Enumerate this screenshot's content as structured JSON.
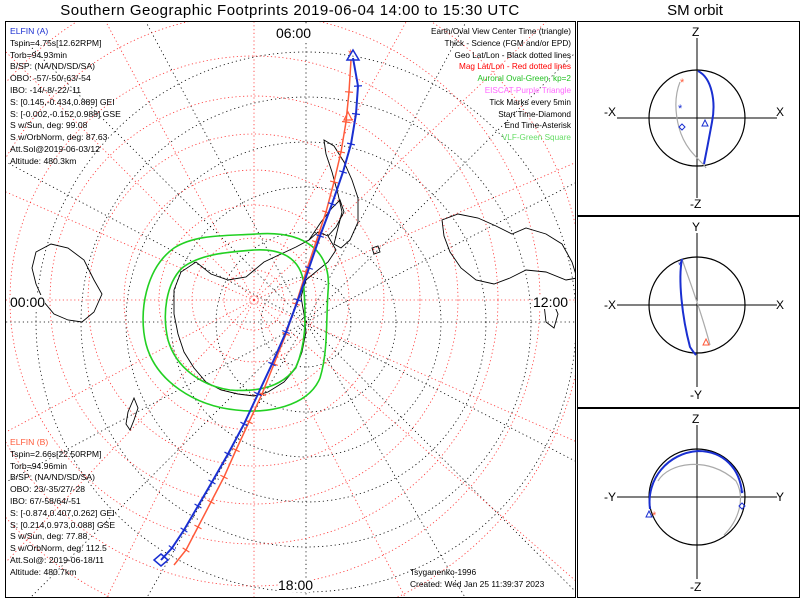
{
  "title": "Southern Geographic Footprints 2019-06-04 14:00 to 15:30 UTC",
  "sm_title": "SM orbit",
  "colors": {
    "elfin_a": "#1a2fd1",
    "elfin_b": "#ff5a3a",
    "auroral_oval": "#22d022",
    "mag_grid": "#ff3030",
    "geo_grid": "#000000",
    "eiscat": "#ff66ff",
    "vlf": "#66dd66"
  },
  "time_labels": {
    "top": "06:00",
    "left": "00:00",
    "right": "12:00",
    "bottom": "18:00"
  },
  "elfin_a": {
    "name": "ELFIN (A)",
    "lines": [
      "Tspin=4.75s[12.62RPM]",
      "Torb=94.93min",
      "B/SP: (NA/ND/SD/SA)",
      "OBO: -57/-50/-63/-54",
      "IBO: -14/-8/-22/-11",
      "S: [0.145,-0.434,0.889] GEI",
      "S: [-0.002,-0.152,0.988] GSE",
      "S w/Sun, deg: 99.08",
      "S w/OrbNorm, deg: 87.63",
      "Att.Sol@2019-06-03/12",
      "Altitude: 480.3km"
    ]
  },
  "elfin_b": {
    "name": "ELFIN (B)",
    "lines": [
      "Tspin=2.66s[22.50RPM]",
      "Torb=94.96min",
      "B/SP: (NA/ND/SD/SA)",
      "OBO: 23/-35/27/-28",
      "IBO: 67/-58/64/-51",
      "S: [-0.874,0.407,0.262] GEI",
      "S: [0.214,0.973,0.088] GSE",
      "S w/Sun, deg: 77.88",
      "S w/OrbNorm, deg: 112.5",
      "Att.Sol@: 2019-06-18/11",
      "Altitude: 480.7km"
    ]
  },
  "legend": [
    {
      "text": "Earth/Oval View Center Time (triangle)",
      "color": "#000000"
    },
    {
      "text": "Thick - Science (FGM and/or EPD)",
      "color": "#000000"
    },
    {
      "text": "Geo Lat/Lon - Black dotted lines",
      "color": "#000000"
    },
    {
      "text": "Mag Lat/Lon - Red dotted lines",
      "color": "#ff0000"
    },
    {
      "text": "Auroral Oval-Green, kp=2",
      "color": "#22c022"
    },
    {
      "text": "EISCAT-Purple Triangle",
      "color": "#ff66ff"
    },
    {
      "text": "Tick Marks every 5min",
      "color": "#000000"
    },
    {
      "text": "Start Time-Diamond",
      "color": "#000000"
    },
    {
      "text": "End Time-Asterisk",
      "color": "#000000"
    },
    {
      "text": "VLF-Green Square",
      "color": "#66dd66"
    }
  ],
  "credits": {
    "model": "Tsyganenko-1996",
    "created": "Created: Wed Jan 25 11:39:37 2023"
  },
  "sm_panels": [
    {
      "id": "xz",
      "top": "Z",
      "bottom": "-Z",
      "left": "-X",
      "right": "X"
    },
    {
      "id": "xy",
      "top": "Y",
      "bottom": "-Y",
      "left": "-X",
      "right": "X"
    },
    {
      "id": "yz",
      "top": "Z",
      "bottom": "-Z",
      "left": "-Y",
      "right": "Y"
    }
  ]
}
